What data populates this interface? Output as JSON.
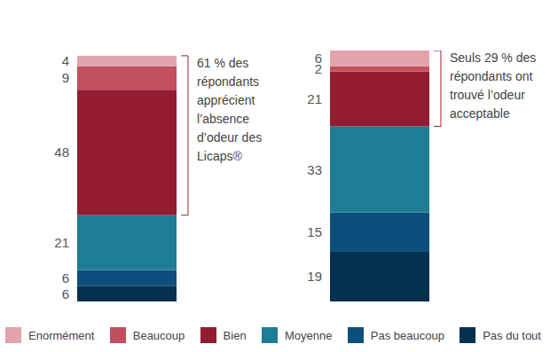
{
  "chart_data": {
    "type": "bar",
    "stacked": true,
    "categories": [
      null,
      null
    ],
    "series": [
      {
        "name": "Enormément",
        "color": "#e3a3ac",
        "values": [
          4,
          6
        ]
      },
      {
        "name": "Beaucoup",
        "color": "#c24f5d",
        "values": [
          9,
          2
        ]
      },
      {
        "name": "Bien",
        "color": "#921c30",
        "values": [
          48,
          21
        ]
      },
      {
        "name": "Moyenne",
        "color": "#1e7d93",
        "values": [
          21,
          33
        ]
      },
      {
        "name": "Pas beaucoup",
        "color": "#0d4f7c",
        "values": [
          6,
          15
        ]
      },
      {
        "name": "Pas du tout",
        "color": "#05304f",
        "values": [
          6,
          19
        ]
      }
    ],
    "data_labels": true,
    "tick_labels": false,
    "legend": "bottom",
    "annotations": [
      [
        "61 % des",
        "répondants",
        "apprécient",
        "l’absence",
        "d’odeur des",
        "Licaps®"
      ],
      [
        "Seuls 29 % des",
        "répondants ont",
        "trouvé l’odeur",
        "acceptable"
      ]
    ]
  }
}
